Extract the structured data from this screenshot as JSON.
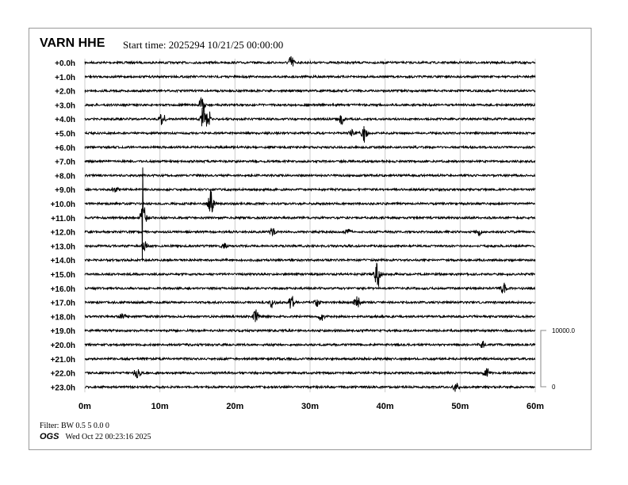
{
  "header": {
    "station": "VARN HHE",
    "start_time": "Start time: 2025294 10/21/25 00:00:00"
  },
  "footer": {
    "filter": "Filter: BW 0.5 5 0.0 0",
    "agency": "OGS",
    "timestamp": "Wed Oct 22 00:23:16 2025"
  },
  "chart_data": {
    "type": "line",
    "title": "VARN HHE",
    "row_labels": [
      "+0.0h",
      "+1.0h",
      "+2.0h",
      "+3.0h",
      "+4.0h",
      "+5.0h",
      "+6.0h",
      "+7.0h",
      "+8.0h",
      "+9.0h",
      "+10.0h",
      "+11.0h",
      "+12.0h",
      "+13.0h",
      "+14.0h",
      "+15.0h",
      "+16.0h",
      "+17.0h",
      "+18.0h",
      "+19.0h",
      "+20.0h",
      "+21.0h",
      "+22.0h",
      "+23.0h"
    ],
    "x_ticks": [
      "0m",
      "10m",
      "20m",
      "30m",
      "40m",
      "50m",
      "60m"
    ],
    "xlim": [
      0,
      60
    ],
    "grid": true,
    "scale_bar": {
      "top": "10000.0",
      "bottom": "0"
    },
    "trace_color": "#000000",
    "events": [
      {
        "hour": 0,
        "minute": 27.5,
        "amplitude": 1200
      },
      {
        "hour": 3,
        "minute": 15.6,
        "amplitude": 1500
      },
      {
        "hour": 4,
        "minute": 10.3,
        "amplitude": 1300
      },
      {
        "hour": 4,
        "minute": 15.8,
        "amplitude": 2500
      },
      {
        "hour": 4,
        "minute": 16.4,
        "amplitude": 1800
      },
      {
        "hour": 4,
        "minute": 34.2,
        "amplitude": 900
      },
      {
        "hour": 5,
        "minute": 37.2,
        "amplitude": 1600
      },
      {
        "hour": 5,
        "minute": 35.5,
        "amplitude": 600
      },
      {
        "hour": 9,
        "minute": 4,
        "amplitude": 500
      },
      {
        "hour": 10,
        "minute": 16.8,
        "amplitude": 2500
      },
      {
        "hour": 11,
        "minute": 7.8,
        "amplitude": 2600
      },
      {
        "hour": 11,
        "minute": 7.7,
        "amplitude": 12000
      },
      {
        "hour": 12,
        "minute": 25,
        "amplitude": 700
      },
      {
        "hour": 12,
        "minute": 35,
        "amplitude": 500
      },
      {
        "hour": 12,
        "minute": 52.5,
        "amplitude": 600
      },
      {
        "hour": 13,
        "minute": 8,
        "amplitude": 700
      },
      {
        "hour": 13,
        "minute": 18.5,
        "amplitude": 500
      },
      {
        "hour": 15,
        "minute": 39,
        "amplitude": 2600
      },
      {
        "hour": 16,
        "minute": 55.8,
        "amplitude": 1000
      },
      {
        "hour": 17,
        "minute": 25,
        "amplitude": 900
      },
      {
        "hour": 17,
        "minute": 27.5,
        "amplitude": 1300
      },
      {
        "hour": 17,
        "minute": 31,
        "amplitude": 700
      },
      {
        "hour": 17,
        "minute": 36.3,
        "amplitude": 1000
      },
      {
        "hour": 18,
        "minute": 22.8,
        "amplitude": 1200
      },
      {
        "hour": 18,
        "minute": 31.5,
        "amplitude": 700
      },
      {
        "hour": 18,
        "minute": 5,
        "amplitude": 500
      },
      {
        "hour": 20,
        "minute": 53,
        "amplitude": 600
      },
      {
        "hour": 22,
        "minute": 7,
        "amplitude": 1300
      },
      {
        "hour": 22,
        "minute": 53.5,
        "amplitude": 1200
      },
      {
        "hour": 23,
        "minute": 49.5,
        "amplitude": 900
      }
    ]
  }
}
